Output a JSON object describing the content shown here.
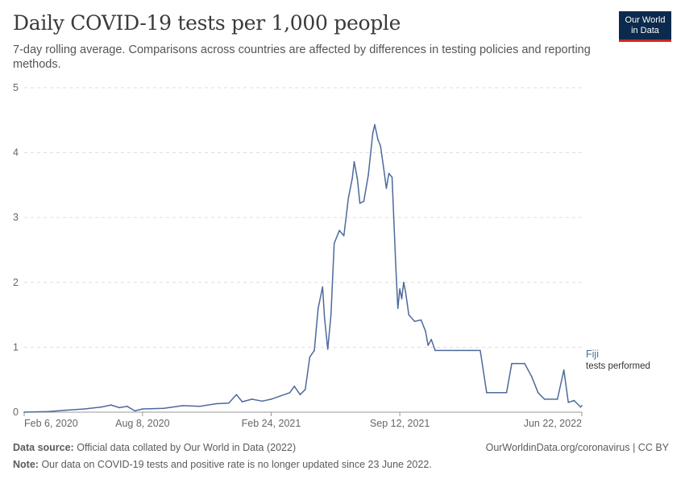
{
  "header": {
    "title": "Daily COVID-19 tests per 1,000 people",
    "subtitle": "7-day rolling average. Comparisons across countries are affected by differences in testing policies and reporting methods.",
    "logo": [
      "Our World",
      "in Data"
    ]
  },
  "chart_data": {
    "type": "line",
    "title": "Daily COVID-19 tests per 1,000 people",
    "subtitle": "7-day rolling average. Comparisons across countries are affected by differences in testing policies and reporting methods.",
    "xlabel": "",
    "ylabel": "",
    "ylim": [
      0,
      5
    ],
    "yticks": [
      0,
      1,
      2,
      3,
      4,
      5
    ],
    "xlim": [
      "2020-02-06",
      "2022-06-22"
    ],
    "xtick_labels": [
      "Feb 6, 2020",
      "Aug 8, 2020",
      "Feb 24, 2021",
      "Sep 12, 2021",
      "Jun 22, 2022"
    ],
    "grid": true,
    "legend": "end-of-line label",
    "series": [
      {
        "name": "Fiji",
        "label_suffix": "tests performed",
        "color": "#4c6a9c",
        "points": [
          [
            "2020-02-06",
            0.0
          ],
          [
            "2020-03-15",
            0.01
          ],
          [
            "2020-04-10",
            0.03
          ],
          [
            "2020-05-10",
            0.05
          ],
          [
            "2020-06-05",
            0.08
          ],
          [
            "2020-06-20",
            0.11
          ],
          [
            "2020-07-03",
            0.07
          ],
          [
            "2020-07-15",
            0.09
          ],
          [
            "2020-07-27",
            0.02
          ],
          [
            "2020-08-08",
            0.05
          ],
          [
            "2020-09-10",
            0.06
          ],
          [
            "2020-10-10",
            0.1
          ],
          [
            "2020-11-05",
            0.09
          ],
          [
            "2020-12-01",
            0.13
          ],
          [
            "2020-12-20",
            0.14
          ],
          [
            "2021-01-01",
            0.27
          ],
          [
            "2021-01-10",
            0.16
          ],
          [
            "2021-01-25",
            0.2
          ],
          [
            "2021-02-10",
            0.17
          ],
          [
            "2021-02-24",
            0.2
          ],
          [
            "2021-03-10",
            0.25
          ],
          [
            "2021-03-25",
            0.3
          ],
          [
            "2021-04-01",
            0.4
          ],
          [
            "2021-04-10",
            0.27
          ],
          [
            "2021-04-18",
            0.35
          ],
          [
            "2021-04-25",
            0.85
          ],
          [
            "2021-05-02",
            0.95
          ],
          [
            "2021-05-08",
            1.6
          ],
          [
            "2021-05-15",
            1.93
          ],
          [
            "2021-05-18",
            1.45
          ],
          [
            "2021-05-23",
            0.97
          ],
          [
            "2021-05-28",
            1.5
          ],
          [
            "2021-06-02",
            2.6
          ],
          [
            "2021-06-10",
            2.8
          ],
          [
            "2021-06-17",
            2.72
          ],
          [
            "2021-06-24",
            3.3
          ],
          [
            "2021-06-30",
            3.6
          ],
          [
            "2021-07-03",
            3.86
          ],
          [
            "2021-07-08",
            3.6
          ],
          [
            "2021-07-12",
            3.22
          ],
          [
            "2021-07-18",
            3.25
          ],
          [
            "2021-07-25",
            3.65
          ],
          [
            "2021-08-01",
            4.3
          ],
          [
            "2021-08-04",
            4.43
          ],
          [
            "2021-08-09",
            4.2
          ],
          [
            "2021-08-13",
            4.1
          ],
          [
            "2021-08-18",
            3.75
          ],
          [
            "2021-08-22",
            3.45
          ],
          [
            "2021-08-26",
            3.68
          ],
          [
            "2021-08-31",
            3.62
          ],
          [
            "2021-09-06",
            2.2
          ],
          [
            "2021-09-09",
            1.6
          ],
          [
            "2021-09-12",
            1.9
          ],
          [
            "2021-09-15",
            1.75
          ],
          [
            "2021-09-18",
            2.0
          ],
          [
            "2021-09-21",
            1.85
          ],
          [
            "2021-09-26",
            1.5
          ],
          [
            "2021-10-05",
            1.4
          ],
          [
            "2021-10-15",
            1.42
          ],
          [
            "2021-10-22",
            1.25
          ],
          [
            "2021-10-26",
            1.03
          ],
          [
            "2021-10-31",
            1.12
          ],
          [
            "2021-11-06",
            0.95
          ],
          [
            "2021-12-10",
            0.95
          ],
          [
            "2022-01-15",
            0.95
          ],
          [
            "2022-01-25",
            0.3
          ],
          [
            "2022-02-25",
            0.3
          ],
          [
            "2022-03-05",
            0.75
          ],
          [
            "2022-03-25",
            0.75
          ],
          [
            "2022-04-05",
            0.55
          ],
          [
            "2022-04-15",
            0.3
          ],
          [
            "2022-04-25",
            0.2
          ],
          [
            "2022-05-15",
            0.2
          ],
          [
            "2022-05-25",
            0.65
          ],
          [
            "2022-06-01",
            0.15
          ],
          [
            "2022-06-10",
            0.18
          ],
          [
            "2022-06-20",
            0.08
          ],
          [
            "2022-06-22",
            0.1
          ]
        ]
      }
    ]
  },
  "footer": {
    "source_label": "Data source:",
    "source_text": "Official data collated by Our World in Data (2022)",
    "note_label": "Note:",
    "note_text": "Our data on COVID-19 tests and positive rate is no longer updated since 23 June 2022.",
    "credit": "OurWorldinData.org/coronavirus | CC BY"
  }
}
